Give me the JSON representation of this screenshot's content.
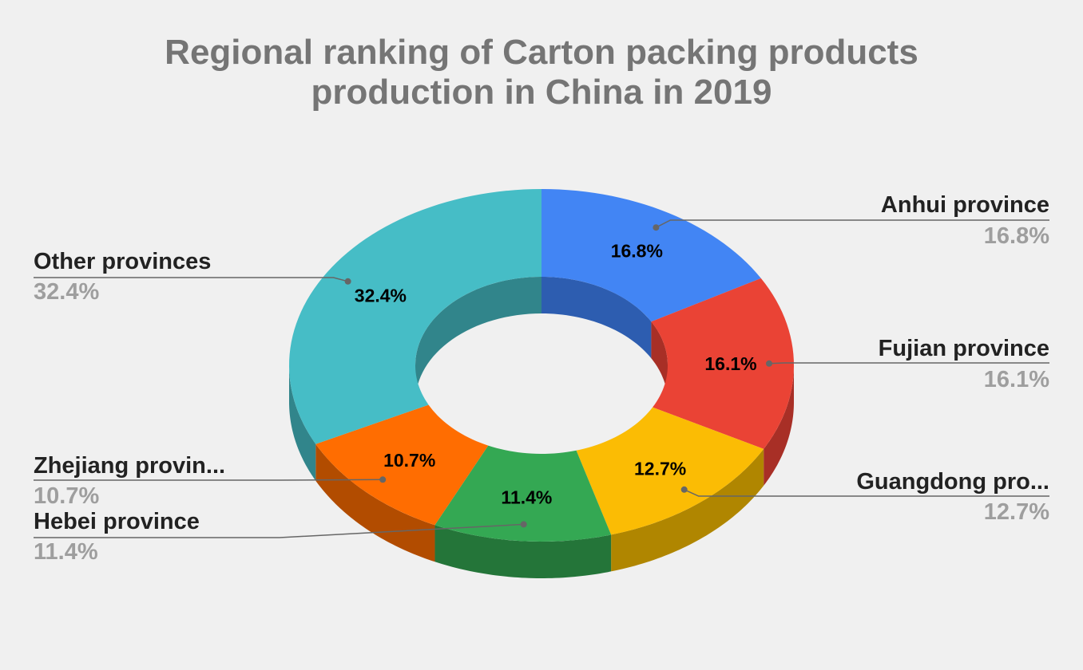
{
  "chart_data": {
    "type": "pie",
    "variant": "3d-donut",
    "title_lines": [
      "Regional ranking of Carton packing products",
      "production in China in 2019"
    ],
    "slices": [
      {
        "name": "Anhui province",
        "legend_label": "Anhui province",
        "value": 16.8,
        "label": "16.8%",
        "callout_pct": "16.8%",
        "color": "#4285f4",
        "side_color": "#2d5db0"
      },
      {
        "name": "Fujian province",
        "legend_label": "Fujian province",
        "value": 16.1,
        "label": "16.1%",
        "callout_pct": "16.1%",
        "color": "#ea4335",
        "side_color": "#a82f26"
      },
      {
        "name": "Guangdong province",
        "legend_label": "Guangdong pro...",
        "value": 12.7,
        "label": "12.7%",
        "callout_pct": "12.7%",
        "color": "#fbbc04",
        "side_color": "#b08600"
      },
      {
        "name": "Hebei province",
        "legend_label": "Hebei province",
        "value": 11.4,
        "label": "11.4%",
        "callout_pct": "11.4%",
        "color": "#34a853",
        "side_color": "#247539"
      },
      {
        "name": "Zhejiang province",
        "legend_label": "Zhejiang provin...",
        "value": 10.7,
        "label": "10.7%",
        "callout_pct": "10.7%",
        "color": "#ff6d01",
        "side_color": "#b24c00"
      },
      {
        "name": "Other provinces",
        "legend_label": "Other provinces",
        "value": 32.4,
        "label": "32.4%",
        "callout_pct": "32.4%",
        "color": "#46bdc6",
        "side_color": "#31858b"
      }
    ],
    "legend_placement": "callouts"
  },
  "colors": {
    "background": "#f0f0f0",
    "title": "#757575",
    "callout_name": "#222222",
    "callout_pct": "#9e9e9e",
    "leader_line": "#666666"
  }
}
